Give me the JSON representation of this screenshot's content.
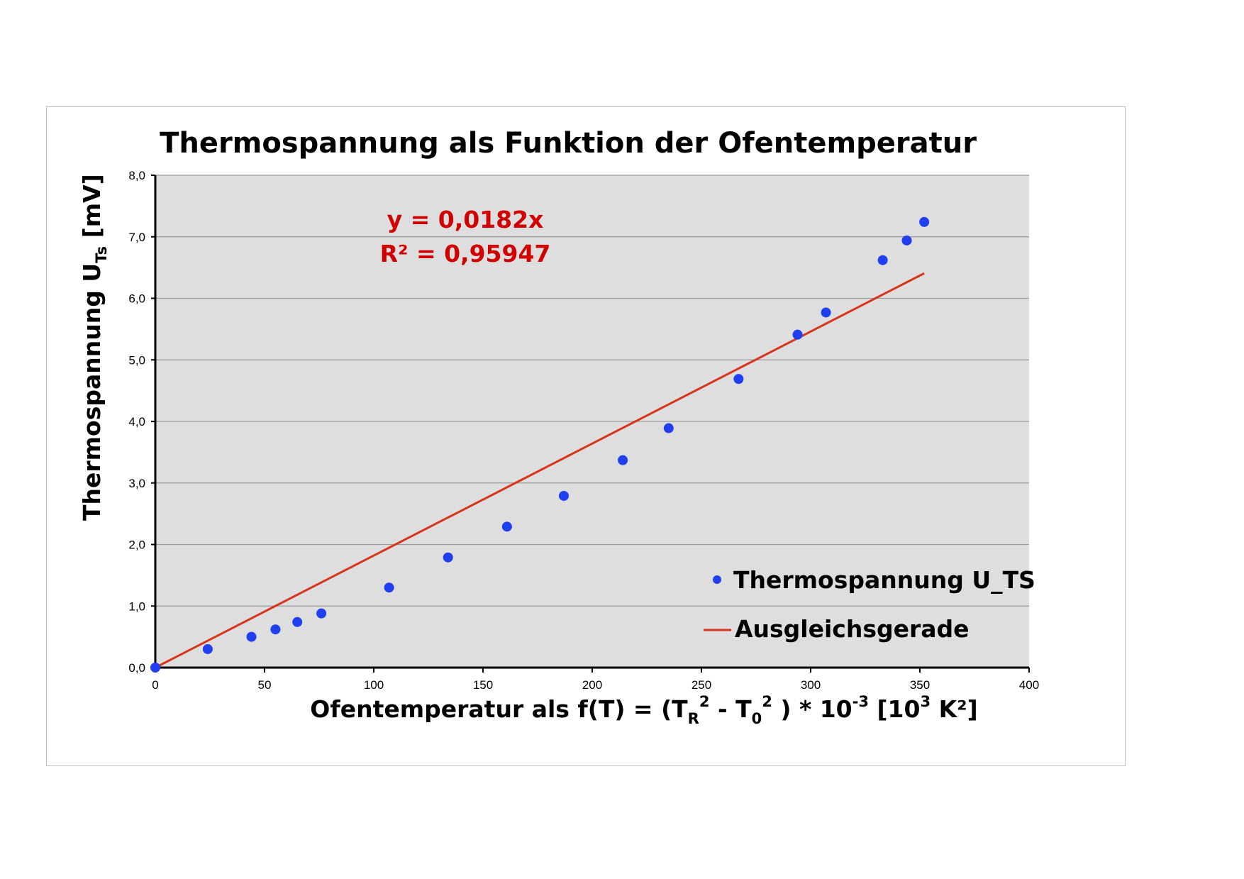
{
  "chart_data": {
    "type": "scatter",
    "title": "Thermospannung als Funktion der Ofentemperatur",
    "xlabel": {
      "main": "Ofentemperatur als f(T) = (T",
      "sub_r": "R",
      "sup_2a": "2",
      "mid": " - T",
      "sub_0": "0",
      "sup_2b": "2",
      "tail": " ) * 10",
      "sup_m3": "-3",
      "unit_open": " [10",
      "sup_3": "3",
      "unit_k": " K²]"
    },
    "ylabel": {
      "main": "Thermospannung U",
      "sub": "Ts",
      "unit": "  [mV]"
    },
    "xlim": [
      0,
      400
    ],
    "ylim": [
      0,
      8
    ],
    "x_ticks": [
      "0",
      "50",
      "100",
      "150",
      "200",
      "250",
      "300",
      "350",
      "400"
    ],
    "y_ticks": [
      "0,0",
      "1,0",
      "2,0",
      "3,0",
      "4,0",
      "5,0",
      "6,0",
      "7,0",
      "8,0"
    ],
    "grid": "horizontal",
    "legend_position": "bottom-right",
    "series": [
      {
        "name": "Thermospannung U_TS",
        "kind": "scatter",
        "color": "#1f3ff0",
        "points": [
          [
            0,
            0.0
          ],
          [
            24,
            0.3
          ],
          [
            44,
            0.5
          ],
          [
            55,
            0.62
          ],
          [
            65,
            0.74
          ],
          [
            76,
            0.88
          ],
          [
            107,
            1.3
          ],
          [
            134,
            1.79
          ],
          [
            161,
            2.29
          ],
          [
            187,
            2.79
          ],
          [
            214,
            3.37
          ],
          [
            235,
            3.89
          ],
          [
            267,
            4.69
          ],
          [
            294,
            5.41
          ],
          [
            307,
            5.77
          ],
          [
            333,
            6.62
          ],
          [
            344,
            6.94
          ],
          [
            352,
            7.24
          ]
        ]
      },
      {
        "name": "Ausgleichsgerade",
        "kind": "line",
        "color": "#d8341a",
        "slope": 0.0182,
        "x_range": [
          0,
          352
        ]
      }
    ],
    "annotations": {
      "equation": "y = 0,0182x",
      "r_squared": "R² = 0,95947",
      "color": "#d00000"
    }
  }
}
